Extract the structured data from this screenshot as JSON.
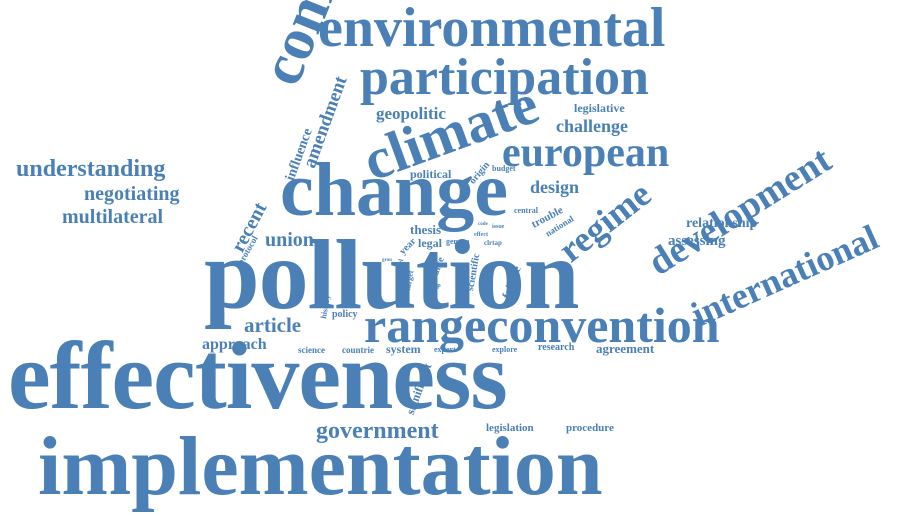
{
  "word_color": "#4a80b5",
  "background": "#ffffff",
  "words": [
    {
      "text": "implementation"
    },
    {
      "text": "effectiveness"
    },
    {
      "text": "pollution"
    },
    {
      "text": "rangeconvention"
    },
    {
      "text": "change"
    },
    {
      "text": "compliance"
    },
    {
      "text": "environmental"
    },
    {
      "text": "participation"
    },
    {
      "text": "climate"
    },
    {
      "text": "european"
    },
    {
      "text": "development"
    },
    {
      "text": "international"
    },
    {
      "text": "regime"
    },
    {
      "text": "government"
    },
    {
      "text": "understanding"
    },
    {
      "text": "negotiating"
    },
    {
      "text": "multilateral"
    },
    {
      "text": "article"
    },
    {
      "text": "union"
    },
    {
      "text": "approach"
    },
    {
      "text": "recent"
    },
    {
      "text": "amendment"
    },
    {
      "text": "influence"
    },
    {
      "text": "geopolitic"
    },
    {
      "text": "challenge"
    },
    {
      "text": "legislative"
    },
    {
      "text": "design"
    },
    {
      "text": "relationship"
    },
    {
      "text": "assessing"
    },
    {
      "text": "thesis"
    },
    {
      "text": "political"
    },
    {
      "text": "legal"
    },
    {
      "text": "agreement"
    },
    {
      "text": "research"
    },
    {
      "text": "procedure"
    },
    {
      "text": "legislation"
    },
    {
      "text": "system"
    },
    {
      "text": "countrie"
    },
    {
      "text": "science"
    },
    {
      "text": "policy"
    },
    {
      "text": "significant"
    },
    {
      "text": "failure"
    },
    {
      "text": "explore"
    },
    {
      "text": "expert"
    },
    {
      "text": "trouble"
    },
    {
      "text": "national"
    },
    {
      "text": "central"
    },
    {
      "text": "origin"
    },
    {
      "text": "budget"
    },
    {
      "text": "protocol"
    },
    {
      "text": "geneva"
    },
    {
      "text": "year"
    },
    {
      "text": "source"
    },
    {
      "text": "scientific"
    },
    {
      "text": "carbon"
    },
    {
      "text": "history"
    },
    {
      "text": "target"
    },
    {
      "text": "level"
    },
    {
      "text": "lrtap"
    },
    {
      "text": "clrtap"
    },
    {
      "text": "issue"
    },
    {
      "text": "effect"
    },
    {
      "text": "grou"
    },
    {
      "text": "code"
    }
  ]
}
